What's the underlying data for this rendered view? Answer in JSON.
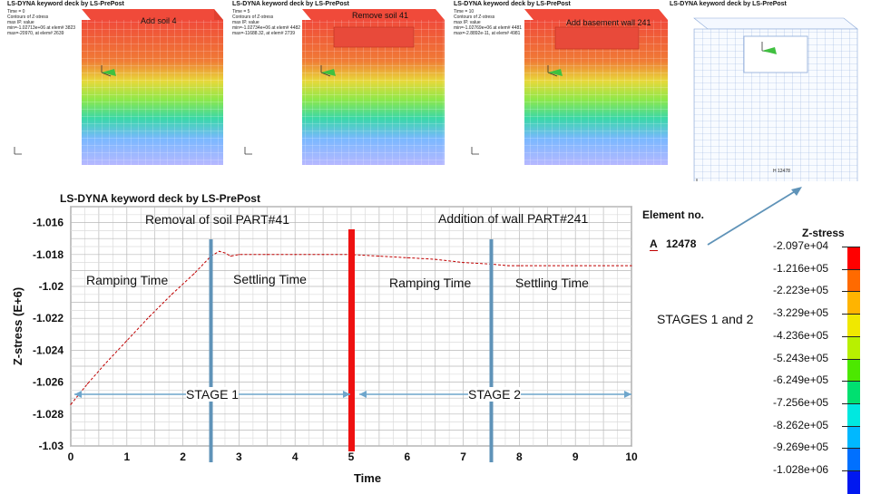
{
  "top_panels": [
    {
      "header": "LS-DYNA keyword deck by LS-PrePost",
      "lines": [
        "Time = 0",
        "Contours of Z-stress",
        "max IP. value",
        "min=-1.02713e+06 at elem# 3823",
        "max=-20970, at elem# 2639"
      ],
      "label": "Add soil 4"
    },
    {
      "header": "LS-DYNA keyword deck by LS-PrePost",
      "lines": [
        "Time = 5",
        "Contours of Z-stress",
        "max IP. value",
        "min=-1.02734e+06 at elem# 4482",
        "max=-11688.32, at elem# 2739"
      ],
      "label": "Remove soil 41"
    },
    {
      "header": "LS-DYNA keyword deck by LS-PrePost",
      "lines": [
        "Time = 10",
        "Contours of Z-stress",
        "max IP. value",
        "min=-1.02769e+06 at elem# 4481",
        "max=-2.8892e-11, at elem# 4981"
      ],
      "label": "Add basement wall 241"
    },
    {
      "header": "LS-DYNA keyword deck by LS-PrePost",
      "lines": [],
      "label": "",
      "element_tag": "H 12478"
    }
  ],
  "chart_data": {
    "type": "line",
    "title": "LS-DYNA keyword deck by LS-PrePost",
    "xlabel": "Time",
    "ylabel": "Z-stress (E+6)",
    "xlim": [
      0,
      10
    ],
    "ylim": [
      -1.03,
      -1.015
    ],
    "x_ticks": [
      "0",
      "0.5",
      "1",
      "1.5",
      "2",
      "2.5",
      "3",
      "3.5",
      "4",
      "4.5",
      "5",
      "5.5",
      "6",
      "6.5",
      "7",
      "7.5",
      "8",
      "8.5",
      "9",
      "9.5",
      "10"
    ],
    "y_ticks": [
      "-1.016",
      "-1.018",
      "-1.02",
      "-1.022",
      "-1.024",
      "-1.026",
      "-1.028",
      "-1.03"
    ],
    "grid": true,
    "series": [
      {
        "name": "A",
        "color": "#c00000",
        "x": [
          0,
          0.3,
          0.6,
          1.0,
          1.4,
          1.8,
          2.2,
          2.5,
          2.65,
          2.75,
          2.85,
          3.0,
          3.5,
          4.0,
          4.5,
          5.0,
          5.5,
          6.0,
          6.5,
          7.0,
          7.5,
          7.8,
          8.0,
          9.0,
          10.0
        ],
        "y": [
          -1.0274,
          -1.0261,
          -1.0249,
          -1.0234,
          -1.0219,
          -1.0205,
          -1.0192,
          -1.0181,
          -1.0178,
          -1.0179,
          -1.0181,
          -1.018,
          -1.018,
          -1.018,
          -1.018,
          -1.018,
          -1.0181,
          -1.0182,
          -1.0183,
          -1.0185,
          -1.0186,
          -1.0187,
          -1.0187,
          -1.0187,
          -1.0187
        ]
      }
    ],
    "markers": {
      "blue_lines": [
        2.5,
        7.5
      ],
      "red_line": 5.0
    },
    "annotations": {
      "removal": "Removal of soil PART#41",
      "addition": "Addition of wall PART#241",
      "ramp1": "Ramping Time",
      "settle1": "Settling Time",
      "ramp2": "Ramping Time",
      "settle2": "Settling Time",
      "stage1": "STAGE 1",
      "stage2": "STAGE 2"
    },
    "legend": {
      "title": "Element no.",
      "entry_letter": "A",
      "entry_value": "12478"
    }
  },
  "stages_label": "STAGES 1 and 2",
  "colorbar": {
    "title": "Z-stress",
    "labels": [
      "-2.097e+04",
      "-1.216e+05",
      "-2.223e+05",
      "-3.229e+05",
      "-4.236e+05",
      "-5.243e+05",
      "-6.249e+05",
      "-7.256e+05",
      "-8.262e+05",
      "-9.269e+05",
      "-1.028e+06"
    ],
    "colors": [
      "#ff0000",
      "#ff6a00",
      "#ffb400",
      "#f0e800",
      "#b8f000",
      "#4ce800",
      "#00e070",
      "#00e8e0",
      "#00b8ff",
      "#0070ff",
      "#0018f0"
    ]
  }
}
